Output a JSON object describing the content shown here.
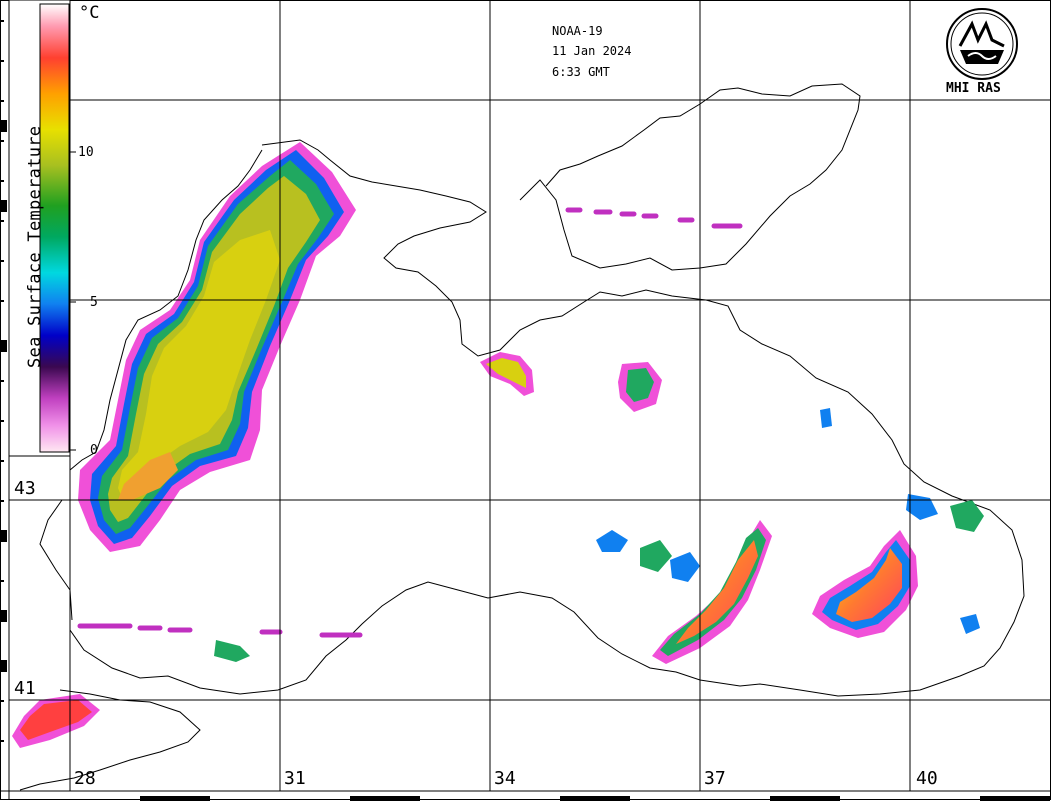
{
  "satellite": {
    "name": "NOAA-19",
    "date": "11 Jan 2024",
    "time": "6:33 GMT"
  },
  "logo": {
    "text": "MHI RAS",
    "icon": "mhi-ras-emblem-icon"
  },
  "colorbar": {
    "title": "Sea Surface Temperature",
    "unit": "°C",
    "ticks": [
      "10",
      "5",
      "0"
    ],
    "stops": [
      "#ffe4ef",
      "#f070e0",
      "#9c1c9c",
      "#1a0a5c",
      "#0a1ae8",
      "#00c8f0",
      "#08a848",
      "#a8c820",
      "#f0e000",
      "#ff8800",
      "#ff2020",
      "#ffffff"
    ]
  },
  "grid": {
    "latitudes": [
      "43",
      "41"
    ],
    "longitudes": [
      "28",
      "31",
      "34",
      "37",
      "40"
    ]
  },
  "colors": {
    "land": "#ffffff",
    "coast": "#000000",
    "grid": "#000000"
  }
}
